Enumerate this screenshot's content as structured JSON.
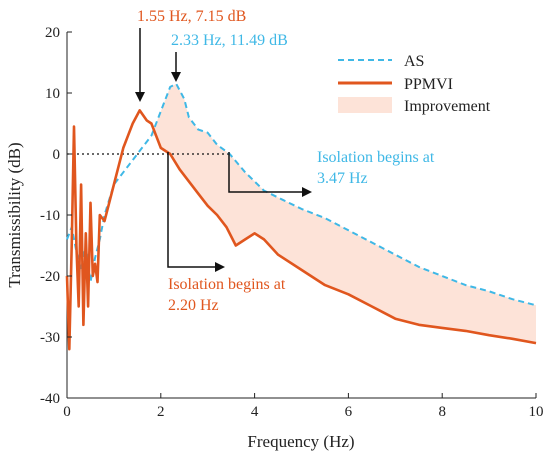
{
  "chart_data": {
    "type": "line",
    "title": "",
    "xlabel": "Frequency (Hz)",
    "ylabel": "Transmissibility (dB)",
    "xlim": [
      0,
      10
    ],
    "ylim": [
      -40,
      20
    ],
    "x_ticks": [
      "0",
      "2",
      "4",
      "6",
      "8",
      "10"
    ],
    "y_ticks": [
      "20",
      "10",
      "0",
      "-10",
      "-20",
      "-30",
      "-40"
    ],
    "grid": false,
    "legend_position": "top-right",
    "series": [
      {
        "name": "AS",
        "color": "#3fb8e6",
        "style": "dashed",
        "x": [
          0,
          0.1,
          0.2,
          0.3,
          0.4,
          0.5,
          0.6,
          0.7,
          0.8,
          1.0,
          1.2,
          1.4,
          1.6,
          1.8,
          2.0,
          2.1,
          2.2,
          2.33,
          2.5,
          2.6,
          2.8,
          3.0,
          3.2,
          3.47,
          3.8,
          4.2,
          4.6,
          5.0,
          5.5,
          6.0,
          6.5,
          7.0,
          7.5,
          8.0,
          8.5,
          9.0,
          9.5,
          10.0
        ],
        "y": [
          -14,
          -12,
          -16,
          -19,
          -15,
          -21,
          -17,
          -14,
          -10,
          -5,
          -3,
          -1,
          1,
          3,
          7,
          9,
          11,
          11.49,
          9,
          6,
          4,
          3.5,
          1.5,
          0,
          -3,
          -6,
          -7.5,
          -9,
          -10.5,
          -12.5,
          -14.5,
          -16.5,
          -18.5,
          -20,
          -21.5,
          -22.5,
          -23.8,
          -24.8
        ]
      },
      {
        "name": "PPMVI",
        "color": "#e0561e",
        "style": "solid",
        "x": [
          0,
          0.05,
          0.1,
          0.15,
          0.2,
          0.25,
          0.3,
          0.35,
          0.4,
          0.45,
          0.5,
          0.55,
          0.6,
          0.65,
          0.7,
          0.8,
          0.9,
          1.0,
          1.1,
          1.2,
          1.3,
          1.4,
          1.55,
          1.7,
          1.8,
          1.9,
          2.0,
          2.2,
          2.4,
          2.6,
          2.8,
          3.0,
          3.2,
          3.4,
          3.6,
          3.8,
          4.0,
          4.2,
          4.5,
          5.0,
          5.5,
          6.0,
          6.5,
          7.0,
          7.5,
          8.0,
          8.5,
          9.0,
          9.5,
          10.0
        ],
        "y": [
          -20,
          -32,
          -15,
          4.5,
          -15,
          -25,
          -5,
          -28,
          -13,
          -25,
          -8,
          -20,
          -18,
          -21,
          -10,
          -11,
          -8,
          -5,
          -2,
          1,
          3,
          5,
          7.15,
          5.5,
          5,
          3,
          1,
          0,
          -2.5,
          -4.5,
          -6.5,
          -8.5,
          -10,
          -12,
          -15,
          -14,
          -13,
          -14,
          -16.5,
          -19,
          -21.5,
          -23,
          -25,
          -27,
          -28,
          -28.5,
          -29,
          -29.7,
          -30.3,
          -31
        ]
      }
    ],
    "improvement_band": {
      "name": "Improvement",
      "color": "#fde3d8",
      "x_range": [
        1.55,
        10
      ]
    },
    "annotations": {
      "peak_pp": "1.55 Hz, 7.15 dB",
      "peak_as": "2.33 Hz, 11.49 dB",
      "iso_as_line1": "Isolation begins at",
      "iso_as_line2": "3.47 Hz",
      "iso_pp_line1": "Isolation begins at",
      "iso_pp_line2": "2.20 Hz"
    },
    "colors": {
      "as": "#3fb8e6",
      "pp": "#e0561e",
      "band": "#fde3d8",
      "axis": "#222222"
    }
  }
}
